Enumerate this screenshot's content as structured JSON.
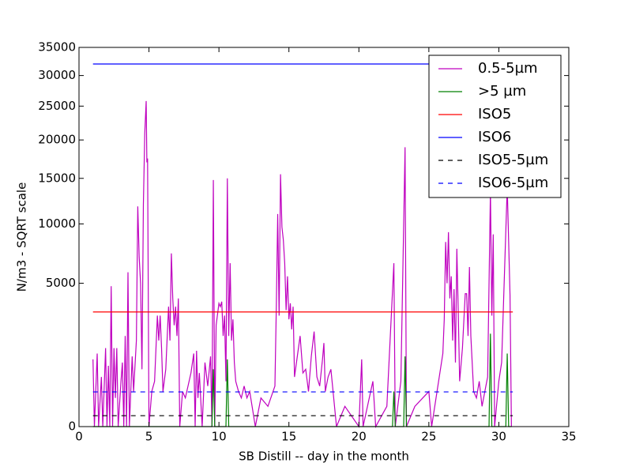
{
  "chart_data": {
    "type": "line",
    "xlabel": "SB Distill -- day in the month",
    "ylabel": "N/m3 - SQRT scale",
    "yscale": "sqrt",
    "xlim": [
      0,
      35
    ],
    "xticks": [
      0,
      5,
      10,
      15,
      20,
      25,
      30,
      35
    ],
    "ylim": [
      0,
      35000
    ],
    "yticks": [
      0,
      5000,
      10000,
      15000,
      20000,
      25000,
      30000,
      35000
    ],
    "legend": "upper right",
    "series": [
      {
        "name": "0.5-5µm",
        "color": "#bf00bf",
        "dash": "solid",
        "x": [
          1.0,
          1.1,
          1.3,
          1.4,
          1.6,
          1.7,
          1.9,
          2.0,
          2.1,
          2.2,
          2.3,
          2.4,
          2.5,
          2.6,
          2.7,
          2.8,
          3.0,
          3.1,
          3.2,
          3.3,
          3.4,
          3.5,
          3.6,
          3.8,
          3.9,
          4.1,
          4.2,
          4.3,
          4.4,
          4.5,
          4.6,
          4.7,
          4.8,
          4.85,
          4.9,
          5.0,
          5.2,
          5.4,
          5.6,
          5.7,
          5.8,
          5.9,
          6.0,
          6.2,
          6.4,
          6.5,
          6.6,
          6.7,
          6.8,
          6.9,
          7.0,
          7.1,
          7.2,
          7.4,
          7.6,
          8.0,
          8.2,
          8.3,
          8.4,
          8.5,
          8.6,
          8.8,
          9.0,
          9.2,
          9.4,
          9.5,
          9.6,
          9.7,
          9.8,
          10.0,
          10.1,
          10.2,
          10.3,
          10.4,
          10.5,
          10.6,
          10.7,
          10.8,
          10.9,
          11.0,
          11.1,
          11.2,
          11.4,
          11.6,
          11.8,
          12.0,
          12.2,
          12.6,
          13.0,
          13.5,
          14.0,
          14.1,
          14.2,
          14.3,
          14.4,
          14.5,
          14.6,
          14.7,
          14.8,
          14.9,
          15.0,
          15.1,
          15.2,
          15.3,
          15.4,
          15.6,
          15.8,
          16.0,
          16.2,
          16.4,
          16.6,
          16.8,
          17.0,
          17.2,
          17.4,
          17.5,
          17.6,
          17.8,
          18.0,
          18.2,
          18.4,
          19.0,
          20.0,
          20.2,
          20.3,
          21.0,
          21.2,
          22.0,
          22.5,
          22.6,
          23.0,
          23.3,
          23.4,
          24.0,
          25.0,
          25.2,
          26.0,
          26.1,
          26.2,
          26.3,
          26.4,
          26.5,
          26.6,
          26.7,
          26.8,
          26.9,
          27.0,
          27.1,
          27.2,
          27.4,
          27.6,
          27.7,
          27.8,
          27.9,
          28.0,
          28.2,
          28.4,
          28.6,
          28.8,
          29.0,
          29.2,
          29.4,
          29.5,
          29.6,
          29.7,
          30.0,
          30.2,
          30.6,
          30.8,
          30.9
        ],
        "values": [
          1100,
          0,
          1300,
          0,
          600,
          0,
          1500,
          0,
          900,
          0,
          4800,
          0,
          1500,
          200,
          1500,
          0,
          500,
          1000,
          0,
          2000,
          0,
          5800,
          0,
          1200,
          300,
          1800,
          11800,
          7000,
          5000,
          800,
          12000,
          21000,
          25800,
          17000,
          17500,
          0,
          300,
          500,
          3000,
          1800,
          3000,
          1500,
          300,
          800,
          3500,
          1800,
          7300,
          4000,
          2500,
          3500,
          2000,
          4000,
          0,
          300,
          200,
          700,
          1300,
          0,
          1400,
          200,
          700,
          0,
          1000,
          400,
          1200,
          0,
          14800,
          0,
          2500,
          3700,
          3500,
          3800,
          2000,
          3000,
          500,
          15000,
          2000,
          6500,
          1800,
          2800,
          1000,
          500,
          300,
          200,
          400,
          200,
          300,
          0,
          200,
          100,
          400,
          3500,
          11000,
          3000,
          15500,
          9700,
          8500,
          6500,
          3300,
          5500,
          2800,
          3700,
          2300,
          3500,
          600,
          1200,
          2000,
          700,
          800,
          300,
          1200,
          2200,
          600,
          400,
          1100,
          1700,
          300,
          600,
          800,
          200,
          0,
          100,
          0,
          1100,
          0,
          500,
          0,
          100,
          6500,
          0,
          500,
          19000,
          0,
          100,
          300,
          0,
          1300,
          2800,
          8300,
          5000,
          9200,
          4000,
          5500,
          1800,
          4600,
          1000,
          7700,
          3200,
          500,
          1500,
          4300,
          4300,
          2000,
          6200,
          2000,
          300,
          200,
          500,
          100,
          300,
          600,
          13500,
          3000,
          9000,
          0,
          500,
          1000,
          14000,
          4200,
          0
        ]
      },
      {
        "name": ">5 µm",
        "color": "#008000",
        "dash": "solid",
        "x": [
          1.0,
          9.5,
          9.6,
          9.7,
          10.5,
          10.6,
          10.7,
          22.4,
          22.5,
          22.6,
          23.2,
          23.3,
          23.4,
          29.3,
          29.4,
          29.5,
          30.5,
          30.6,
          30.7,
          30.9
        ],
        "values": [
          0,
          0,
          800,
          0,
          0,
          1100,
          0,
          0,
          300,
          0,
          0,
          1200,
          0,
          0,
          2100,
          0,
          0,
          1300,
          0,
          0
        ]
      },
      {
        "name": "ISO5",
        "color": "#ff0000",
        "dash": "solid",
        "x": [
          1,
          31
        ],
        "values": [
          3200,
          3200
        ]
      },
      {
        "name": "ISO6",
        "color": "#0000ff",
        "dash": "solid",
        "x": [
          1,
          31
        ],
        "values": [
          32000,
          32000
        ]
      },
      {
        "name": "ISO5-5µm",
        "color": "#000000",
        "dash": "dashed",
        "x": [
          1,
          31
        ],
        "values": [
          29,
          29
        ]
      },
      {
        "name": "ISO6-5µm",
        "color": "#0000ff",
        "dash": "dashed",
        "x": [
          1,
          31
        ],
        "values": [
          293,
          293
        ]
      }
    ]
  }
}
